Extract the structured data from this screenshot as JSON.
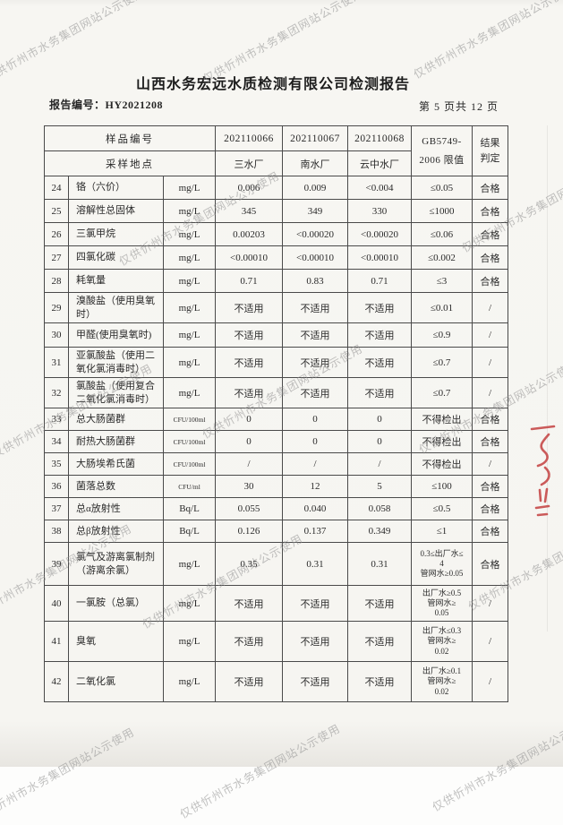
{
  "page": {
    "title": "山西水务宏远水质检测有限公司检测报告",
    "report_no": "报告编号：HY2021208",
    "page_indicator": "第 5 页共 12 页"
  },
  "watermark": {
    "text": "仅供忻州市水务集团网站公示使用",
    "color": "#8f8f8f"
  },
  "table": {
    "header": {
      "sample_no_label": "样品编号",
      "location_label": "采样地点",
      "sample_ids": [
        "202110066",
        "202110067",
        "202110068"
      ],
      "locations": [
        "三水厂",
        "南水厂",
        "云中水厂"
      ],
      "standard_line1": "GB5749-",
      "standard_line2": "2006 限值",
      "result_line1": "结果",
      "result_line2": "判定"
    },
    "rows": [
      {
        "no": "24",
        "name": "铬（六价）",
        "unit": "mg/L",
        "v1": "0.006",
        "v2": "0.009",
        "v3": "<0.004",
        "limit": "≤0.05",
        "result": "合格"
      },
      {
        "no": "25",
        "name": "溶解性总固体",
        "unit": "mg/L",
        "v1": "345",
        "v2": "349",
        "v3": "330",
        "limit": "≤1000",
        "result": "合格"
      },
      {
        "no": "26",
        "name": "三氯甲烷",
        "unit": "mg/L",
        "v1": "0.00203",
        "v2": "<0.00020",
        "v3": "<0.00020",
        "limit": "≤0.06",
        "result": "合格"
      },
      {
        "no": "27",
        "name": "四氯化碳",
        "unit": "mg/L",
        "v1": "<0.00010",
        "v2": "<0.00010",
        "v3": "<0.00010",
        "limit": "≤0.002",
        "result": "合格"
      },
      {
        "no": "28",
        "name": "耗氧量",
        "unit": "mg/L",
        "v1": "0.71",
        "v2": "0.83",
        "v3": "0.71",
        "limit": "≤3",
        "result": "合格"
      },
      {
        "no": "29",
        "name": "溴酸盐（使用臭氧时）",
        "unit": "mg/L",
        "v1": "不适用",
        "v2": "不适用",
        "v3": "不适用",
        "limit": "≤0.01",
        "result": "/"
      },
      {
        "no": "30",
        "name": "甲醛(使用臭氧时)",
        "unit": "mg/L",
        "v1": "不适用",
        "v2": "不适用",
        "v3": "不适用",
        "limit": "≤0.9",
        "result": "/"
      },
      {
        "no": "31",
        "name": "亚氯酸盐（使用二氧化氯消毒时）",
        "unit": "mg/L",
        "v1": "不适用",
        "v2": "不适用",
        "v3": "不适用",
        "limit": "≤0.7",
        "result": "/"
      },
      {
        "no": "32",
        "name": "氯酸盐（使用复合二氧化氯消毒时）",
        "unit": "mg/L",
        "v1": "不适用",
        "v2": "不适用",
        "v3": "不适用",
        "limit": "≤0.7",
        "result": "/"
      },
      {
        "no": "33",
        "name": "总大肠菌群",
        "unit": "CFU/100ml",
        "v1": "0",
        "v2": "0",
        "v3": "0",
        "limit": "不得检出",
        "result": "合格"
      },
      {
        "no": "34",
        "name": "耐热大肠菌群",
        "unit": "CFU/100ml",
        "v1": "0",
        "v2": "0",
        "v3": "0",
        "limit": "不得检出",
        "result": "合格"
      },
      {
        "no": "35",
        "name": "大肠埃希氏菌",
        "unit": "CFU/100ml",
        "v1": "/",
        "v2": "/",
        "v3": "/",
        "limit": "不得检出",
        "result": "/"
      },
      {
        "no": "36",
        "name": "菌落总数",
        "unit": "CFU/ml",
        "v1": "30",
        "v2": "12",
        "v3": "5",
        "limit": "≤100",
        "result": "合格"
      },
      {
        "no": "37",
        "name": "总α放射性",
        "unit": "Bq/L",
        "v1": "0.055",
        "v2": "0.040",
        "v3": "0.058",
        "limit": "≤0.5",
        "result": "合格"
      },
      {
        "no": "38",
        "name": "总β放射性",
        "unit": "Bq/L",
        "v1": "0.126",
        "v2": "0.137",
        "v3": "0.349",
        "limit": "≤1",
        "result": "合格"
      },
      {
        "no": "39",
        "name": "氯气及游离氯制剂（游离余氯）",
        "unit": "mg/L",
        "v1": "0.35",
        "v2": "0.31",
        "v3": "0.31",
        "limit": "0.3≤出厂水≤\n4\n管网水≥0.05",
        "result": "合格"
      },
      {
        "no": "40",
        "name": "一氯胺（总氯）",
        "unit": "mg/L",
        "v1": "不适用",
        "v2": "不适用",
        "v3": "不适用",
        "limit": "出厂水≥0.5\n管网水≥\n0.05",
        "result": "/"
      },
      {
        "no": "41",
        "name": "臭氧",
        "unit": "mg/L",
        "v1": "不适用",
        "v2": "不适用",
        "v3": "不适用",
        "limit": "出厂水≤0.3\n管网水≥\n0.02",
        "result": "/"
      },
      {
        "no": "42",
        "name": "二氧化氯",
        "unit": "mg/L",
        "v1": "不适用",
        "v2": "不适用",
        "v3": "不适用",
        "limit": "出厂水≥0.1\n管网水≥\n0.02",
        "result": "/"
      }
    ]
  }
}
